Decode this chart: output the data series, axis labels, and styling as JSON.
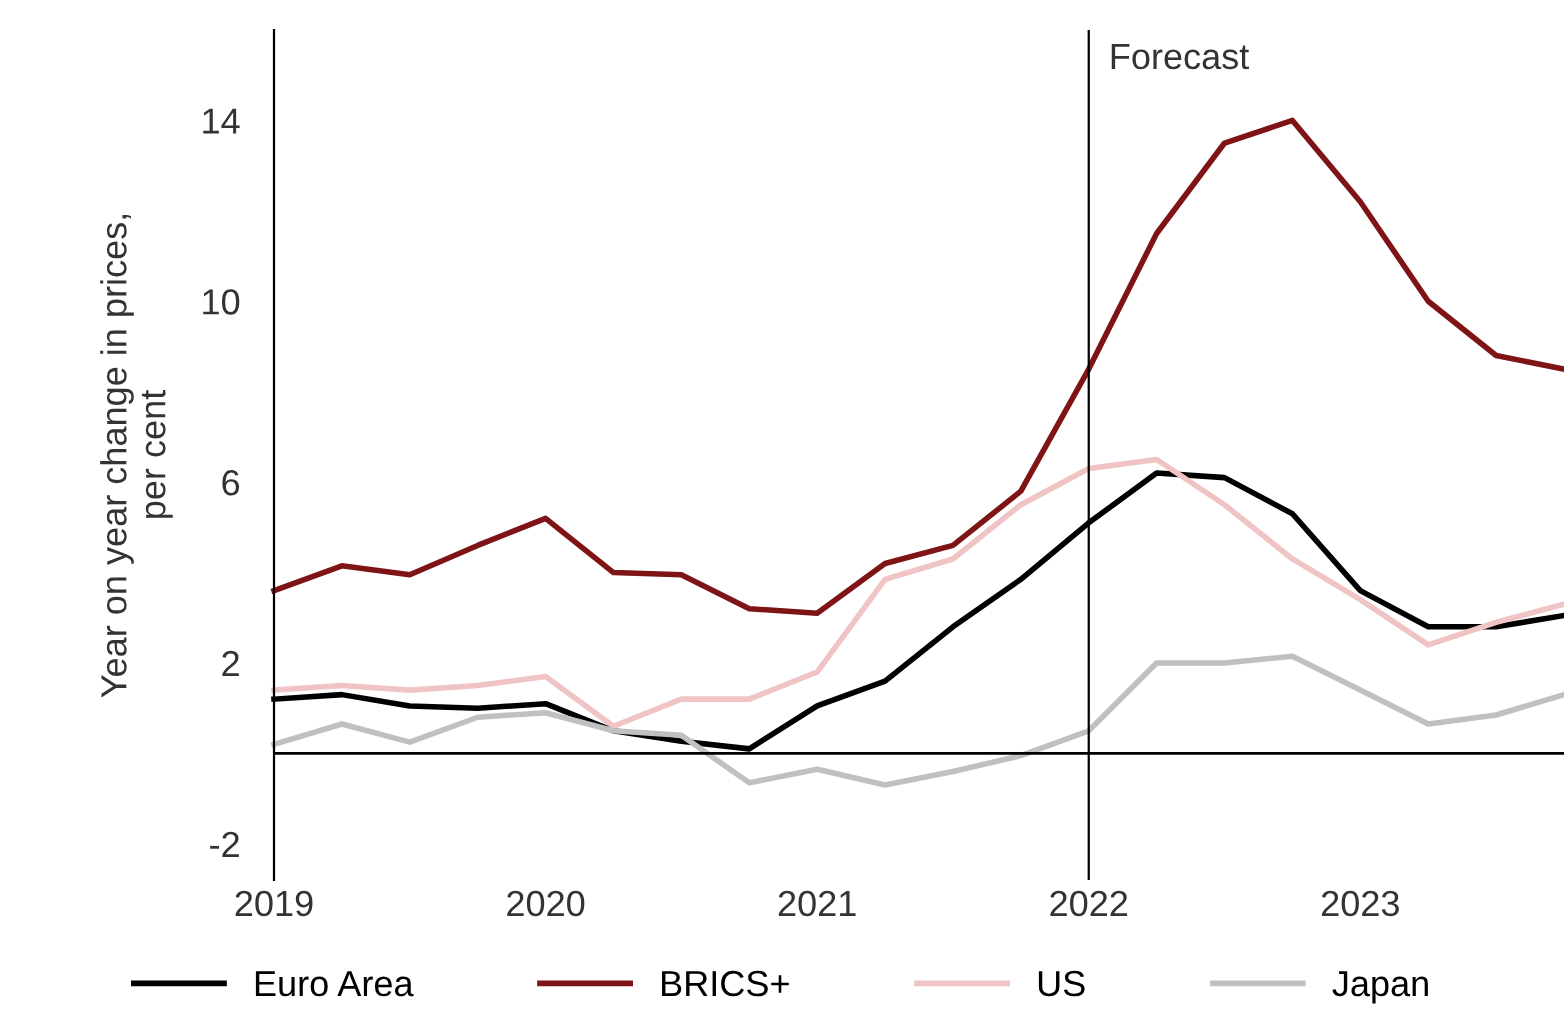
{
  "chart_data": {
    "type": "line",
    "ylabel": "Year on year change in prices,\nper cent",
    "x": [
      2019,
      2019.25,
      2019.5,
      2019.75,
      2020,
      2020.25,
      2020.5,
      2020.75,
      2021,
      2021.25,
      2021.5,
      2021.75,
      2022,
      2022.25,
      2022.5,
      2022.75,
      2023,
      2023.25,
      2023.5,
      2023.75
    ],
    "series": [
      {
        "name": "Euro Area",
        "color": "#000000",
        "values": [
          1.2,
          1.3,
          1.05,
          1.0,
          1.1,
          0.5,
          0.27,
          0.1,
          1.05,
          1.6,
          2.8,
          3.85,
          5.1,
          6.2,
          6.1,
          5.3,
          3.6,
          2.8,
          2.8,
          3.05
        ]
      },
      {
        "name": "BRICS+",
        "color": "#7f1416",
        "values": [
          3.6,
          4.15,
          3.95,
          4.6,
          5.2,
          4.0,
          3.95,
          3.2,
          3.1,
          4.2,
          4.6,
          5.8,
          8.5,
          11.5,
          13.5,
          14.0,
          12.2,
          10.0,
          8.8,
          8.5
        ]
      },
      {
        "name": "US",
        "color": "#f0c4c4",
        "values": [
          1.4,
          1.5,
          1.4,
          1.5,
          1.7,
          0.6,
          1.2,
          1.2,
          1.8,
          3.85,
          4.3,
          5.5,
          6.3,
          6.5,
          5.5,
          4.3,
          3.4,
          2.4,
          2.9,
          3.3
        ]
      },
      {
        "name": "Japan",
        "color": "#c0c0c0",
        "values": [
          0.2,
          0.65,
          0.25,
          0.8,
          0.9,
          0.5,
          0.4,
          -0.65,
          -0.35,
          -0.7,
          -0.4,
          -0.05,
          0.5,
          2.0,
          2.0,
          2.15,
          1.4,
          0.65,
          0.85,
          1.3
        ]
      }
    ],
    "xlim": [
      2019,
      2023.75
    ],
    "xticks": [
      2019,
      2020,
      2021,
      2022,
      2023
    ],
    "ylim": [
      -2.8,
      16
    ],
    "yticks": [
      -2,
      2,
      6,
      10,
      14
    ],
    "ref_lines": [
      {
        "axis": "x",
        "value": 2022,
        "label": "Forecast",
        "color": "#000000"
      },
      {
        "axis": "y",
        "value": 0,
        "color": "#000000"
      }
    ],
    "grid": false,
    "legend": "bottom",
    "marker": "none",
    "line_style": "solid"
  }
}
